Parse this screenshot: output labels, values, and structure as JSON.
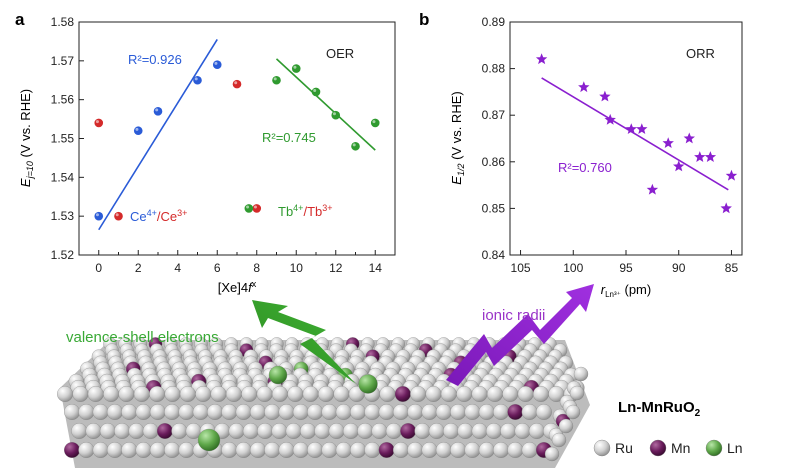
{
  "panel_a": {
    "letter": "a",
    "note": "OER",
    "ytitle_main": "E",
    "ytitle_sub": "j=10",
    "ytitle_rest": " (V vs. RHE)",
    "xtitle_main": "[Xe]4",
    "xtitle_f": "f",
    "xtitle_sup": "x",
    "r2_blue": "R²=0.926",
    "r2_green": "R²=0.745",
    "legend_ce_part1": "Ce",
    "legend_ce_sup1": "4+",
    "legend_ce_slash": "/",
    "legend_ce_part2": "Ce",
    "legend_ce_sup2": "3+",
    "legend_tb_part1": "Tb",
    "legend_tb_sup1": "4+",
    "legend_tb_slash": "/",
    "legend_tb_part2": "Tb",
    "legend_tb_sup2": "3+"
  },
  "panel_b": {
    "letter": "b",
    "note": "ORR",
    "ytitle_main": "E",
    "ytitle_sub": "1/2",
    "ytitle_rest": " (V vs. RHE)",
    "xtitle_main": "r",
    "xtitle_sub": "Ln³⁺",
    "xtitle_rest": " (pm)",
    "r2": "R²=0.760"
  },
  "illustration": {
    "valence_label": "valence-shell electrons",
    "ionic_label": "ionic radii",
    "material_main": "Ln-MnRuO",
    "material_sub": "2",
    "legend": [
      {
        "label": "Ru",
        "color": "#c8c8c8"
      },
      {
        "label": "Mn",
        "color": "#6a1c5c"
      },
      {
        "label": "Ln",
        "color": "#5fa84a"
      }
    ]
  },
  "colors": {
    "blue": "#2a5bd7",
    "red": "#d42a2a",
    "green": "#2f9a2f",
    "purple": "#8a1fcf",
    "valence_text": "#39a935",
    "ionic_text": "#9a35c8"
  },
  "chart_data": [
    {
      "type": "scatter",
      "panel": "a",
      "xlabel": "[Xe]4f^x",
      "ylabel": "E_j=10 (V vs. RHE)",
      "xlim": [
        -1,
        15
      ],
      "ylim": [
        1.52,
        1.58
      ],
      "xticks": [
        0,
        2,
        4,
        6,
        8,
        10,
        12,
        14
      ],
      "yticks": [
        1.52,
        1.53,
        1.54,
        1.55,
        1.56,
        1.57,
        1.58
      ],
      "series": [
        {
          "points": [
            [
              0,
              1.53
            ],
            [
              2,
              1.552
            ],
            [
              3,
              1.557
            ],
            [
              5,
              1.565
            ],
            [
              6,
              1.569
            ]
          ],
          "color": "#2a5bd7"
        },
        {
          "points": [
            [
              0,
              1.554
            ],
            [
              1,
              1.53
            ],
            [
              7,
              1.564
            ],
            [
              8,
              1.532
            ]
          ],
          "color": "#d42a2a"
        },
        {
          "points": [
            [
              9,
              1.565
            ],
            [
              10,
              1.568
            ],
            [
              11,
              1.562
            ],
            [
              12,
              1.556
            ],
            [
              13,
              1.548
            ],
            [
              14,
              1.554
            ],
            [
              7.6,
              1.532
            ]
          ],
          "color": "#2f9a2f"
        }
      ],
      "fits": [
        {
          "from": [
            0,
            1.5265
          ],
          "to": [
            6,
            1.5755
          ],
          "color": "#2a5bd7",
          "r2": 0.926
        },
        {
          "from": [
            9,
            1.5705
          ],
          "to": [
            14,
            1.547
          ],
          "color": "#2f9a2f",
          "r2": 0.745
        }
      ]
    },
    {
      "type": "scatter",
      "panel": "b",
      "xlabel": "r_Ln3+ (pm)",
      "ylabel": "E_1/2 (V vs. RHE)",
      "xlim": [
        106,
        84
      ],
      "ylim": [
        0.84,
        0.89
      ],
      "xticks": [
        105,
        100,
        95,
        90,
        85
      ],
      "yticks": [
        0.84,
        0.85,
        0.86,
        0.87,
        0.88,
        0.89
      ],
      "series": [
        {
          "points": [
            [
              103,
              0.882
            ],
            [
              99,
              0.876
            ],
            [
              97,
              0.874
            ],
            [
              96.5,
              0.869
            ],
            [
              94.5,
              0.867
            ],
            [
              93.5,
              0.867
            ],
            [
              92.5,
              0.854
            ],
            [
              91,
              0.864
            ],
            [
              90,
              0.859
            ],
            [
              89,
              0.865
            ],
            [
              88,
              0.861
            ],
            [
              87,
              0.861
            ],
            [
              85.5,
              0.85
            ],
            [
              85,
              0.857
            ]
          ],
          "color": "#8a1fcf"
        }
      ],
      "fits": [
        {
          "from": [
            103,
            0.878
          ],
          "to": [
            85.3,
            0.854
          ],
          "color": "#8a1fcf",
          "r2": 0.76
        }
      ]
    }
  ]
}
